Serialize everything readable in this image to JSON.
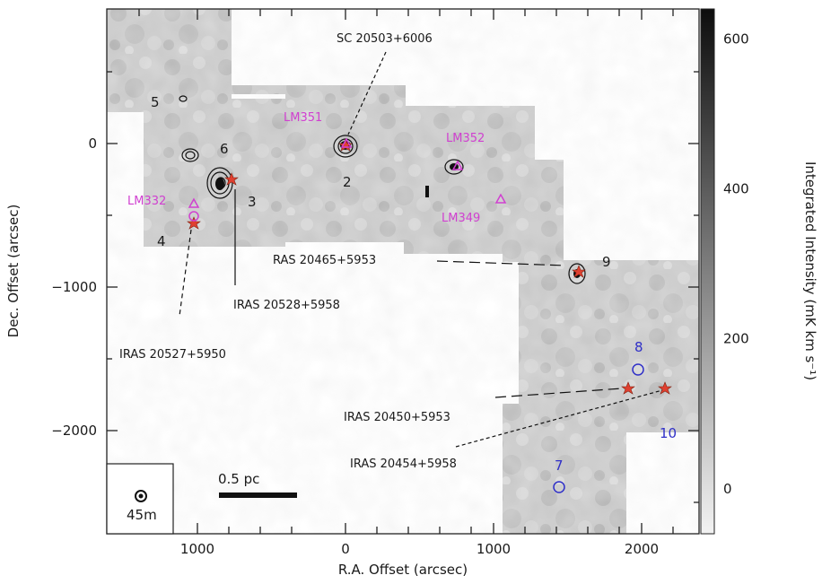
{
  "chart_data": {
    "type": "heatmap",
    "title": "",
    "xlabel": "R.A. Offset (arcsec)",
    "ylabel": "Dec. Offset (arcsec)",
    "colorbar_label": "Integrated Intensity (mK km s⁻¹)",
    "x_ticks": [
      "1000",
      "0",
      "1000",
      "2000"
    ],
    "x_tick_values": [
      -1000,
      0,
      1000,
      2000
    ],
    "y_ticks": [
      "0",
      "−1000",
      "−2000"
    ],
    "y_tick_values": [
      0,
      -1000,
      -2000
    ],
    "xlim": [
      -1650,
      2400
    ],
    "ylim": [
      -2700,
      950
    ],
    "colorbar_ticks": [
      "0",
      "200",
      "400",
      "600"
    ],
    "colorbar_tick_values": [
      0,
      200,
      400,
      600
    ],
    "colorbar_range": [
      -60,
      640
    ],
    "scalebar_label": "0.5 pc",
    "beam_label": "45m",
    "sources": [
      {
        "label": "5",
        "x": -1370,
        "y": 380,
        "color": "black"
      },
      {
        "label": "6",
        "x": -1010,
        "y": -20,
        "color": "black"
      },
      {
        "label": "3",
        "x": -850,
        "y": -330,
        "color": "black"
      },
      {
        "label": "4",
        "x": -1290,
        "y": -510,
        "color": "black"
      },
      {
        "label": "2",
        "x": 30,
        "y": -240,
        "color": "black"
      },
      {
        "label": "9",
        "x": 1780,
        "y": -890,
        "color": "black"
      },
      {
        "label": "8",
        "x": 2000,
        "y": -1410,
        "color": "blue"
      },
      {
        "label": "10",
        "x": 2230,
        "y": -1990,
        "color": "blue"
      },
      {
        "label": "7",
        "x": 1430,
        "y": -2250,
        "color": "blue"
      }
    ],
    "markers": [
      {
        "label": "LM351",
        "x": 30,
        "y": -30,
        "color": "magenta"
      },
      {
        "label": "LM352",
        "x": 750,
        "y": -160,
        "color": "magenta"
      },
      {
        "label": "LM349",
        "x": 1080,
        "y": -420,
        "color": "magenta"
      },
      {
        "label": "LM332",
        "x": -990,
        "y": -430,
        "color": "magenta"
      }
    ],
    "annotations": [
      {
        "label": "SC 20503+6006"
      },
      {
        "label": "RAS 20465+5953"
      },
      {
        "label": "IRAS 20528+5958"
      },
      {
        "label": "IRAS 20527+5950"
      },
      {
        "label": "IRAS 20450+5953"
      },
      {
        "label": "IRAS 20454+5958"
      }
    ]
  }
}
